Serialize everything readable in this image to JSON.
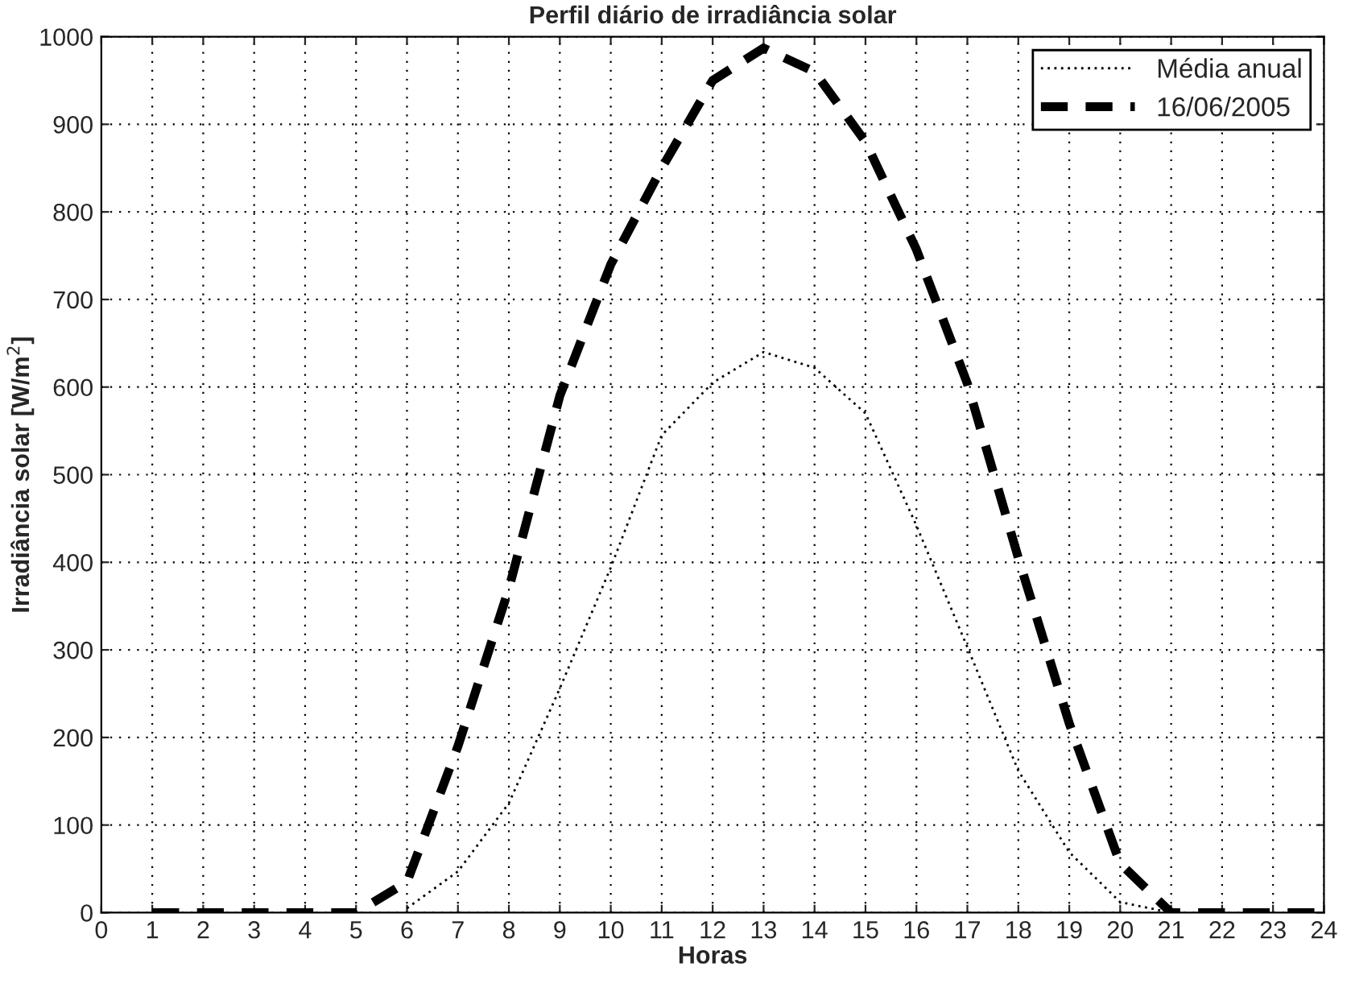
{
  "chart_data": {
    "type": "line",
    "title": "Perfil diário de irradiância solar",
    "xlabel": "Horas",
    "ylabel": "Irradiância solar [W/m$^{2}$]",
    "xlim": [
      0,
      24
    ],
    "xticks": [
      0,
      1,
      2,
      3,
      4,
      5,
      6,
      7,
      8,
      9,
      10,
      11,
      12,
      13,
      14,
      15,
      16,
      17,
      18,
      19,
      20,
      21,
      22,
      23,
      24
    ],
    "ylim": [
      0,
      1000
    ],
    "yticks": [
      0,
      100,
      200,
      300,
      400,
      500,
      600,
      700,
      800,
      900,
      1000
    ],
    "grid": true,
    "legend": "top right",
    "series": [
      {
        "name": "Média anual",
        "color": "#000000",
        "line_style": "dotted",
        "x": [
          6,
          7,
          8,
          9,
          10,
          11,
          12,
          13,
          14,
          15,
          16,
          17,
          18,
          19,
          20,
          21
        ],
        "values": [
          5,
          47,
          125,
          256,
          394,
          545,
          605,
          640,
          622,
          570,
          442,
          303,
          162,
          69,
          12,
          0
        ]
      },
      {
        "name": "16/06/2005",
        "color": "#000000",
        "line_style": "dashed",
        "x": [
          1,
          2,
          3,
          4,
          5,
          6,
          7,
          8,
          9,
          10,
          11,
          12,
          13,
          14,
          15,
          16,
          17,
          18,
          19,
          20,
          21,
          22,
          23,
          24
        ],
        "values": [
          0,
          0,
          0,
          0,
          0,
          35,
          190,
          370,
          590,
          740,
          850,
          950,
          987,
          960,
          880,
          757,
          604,
          405,
          216,
          56,
          0,
          0,
          0,
          0
        ]
      }
    ]
  }
}
